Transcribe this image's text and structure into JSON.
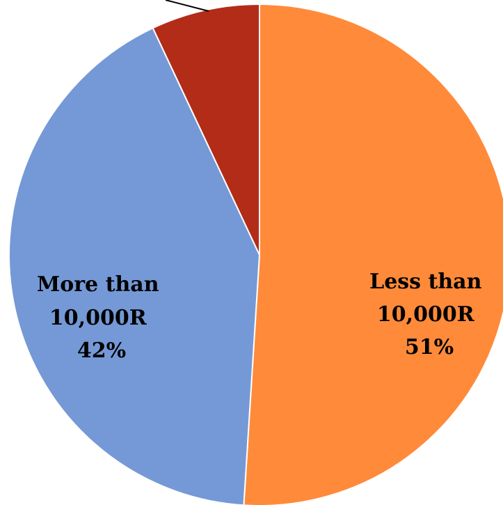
{
  "chart_data": {
    "type": "pie",
    "title": "",
    "start_angle_deg": 0,
    "direction": "clockwise",
    "slices": [
      {
        "label": "Less than 10,000R",
        "label_lines": [
          "Less than",
          "10,000R"
        ],
        "percent_text": "51%",
        "value": 51,
        "color": "#FF8A3A"
      },
      {
        "label": "More than 10,000R",
        "label_lines": [
          "More than",
          "10,000R"
        ],
        "percent_text": "42%",
        "value": 42,
        "color": "#7599D6"
      },
      {
        "label": "",
        "label_lines": [],
        "percent_text": "",
        "value": 7,
        "color": "#B32C17"
      }
    ]
  }
}
